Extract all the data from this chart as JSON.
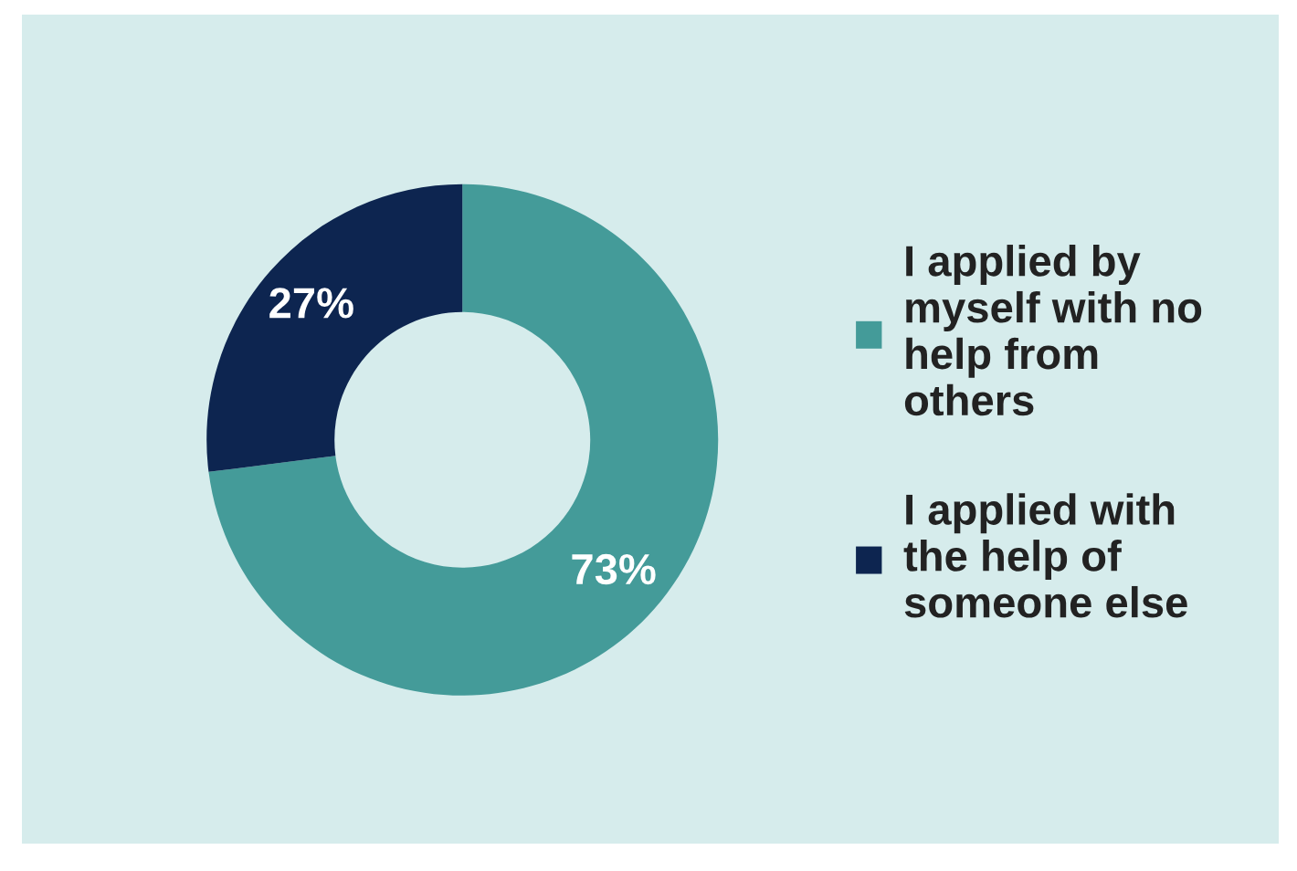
{
  "chart_data": {
    "type": "donut",
    "categories": [
      "I applied by myself with no help from others",
      "I applied with the help of someone else"
    ],
    "values": [
      73,
      27
    ],
    "colors": [
      "#449b99",
      "#0d2550"
    ],
    "value_labels": [
      "73%",
      "27%"
    ],
    "legend": "right"
  }
}
